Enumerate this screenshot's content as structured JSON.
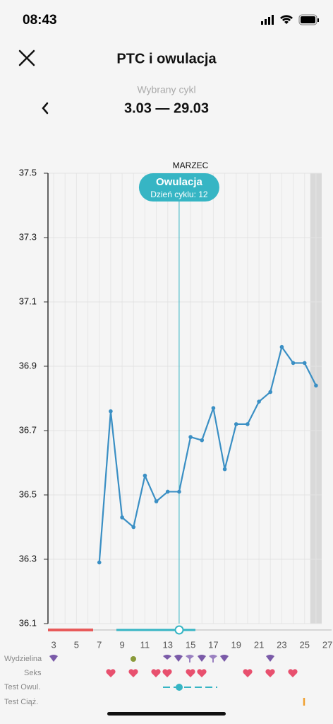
{
  "status_bar": {
    "time": "08:43"
  },
  "header": {
    "title": "PTC i owulacja",
    "subtitle": "Wybrany cykl",
    "cycle": "3.03 — 29.03"
  },
  "chart_data": {
    "type": "line",
    "title": "MARZEC",
    "x": [
      7,
      8,
      9,
      10,
      11,
      12,
      13,
      14,
      15,
      16,
      17,
      18,
      19,
      20,
      21,
      22,
      23,
      24,
      25,
      26
    ],
    "values": [
      36.29,
      36.76,
      36.43,
      36.4,
      36.56,
      36.48,
      36.51,
      36.51,
      36.68,
      36.67,
      36.77,
      36.58,
      36.72,
      36.72,
      36.79,
      36.82,
      36.96,
      36.91,
      36.91,
      36.84
    ],
    "color": "#3a8fc4",
    "xlim": [
      2.5,
      26.5
    ],
    "xticks": [
      3,
      5,
      7,
      9,
      11,
      13,
      15,
      17,
      19,
      21,
      23,
      25,
      27
    ],
    "ylim": [
      36.1,
      37.5
    ],
    "yticks": [
      37.5,
      37.3,
      37.1,
      36.9,
      36.7,
      36.5,
      36.3,
      36.1
    ],
    "grid": true,
    "annotation": {
      "title": "Owulacja",
      "subtitle": "Dzień cyklu: 12",
      "x": 14,
      "color": "#36b5c4"
    },
    "shaded_x": 26
  },
  "rows": [
    "Wydzielina",
    "Seks",
    "Test Owul.",
    "Test Ciąż."
  ]
}
